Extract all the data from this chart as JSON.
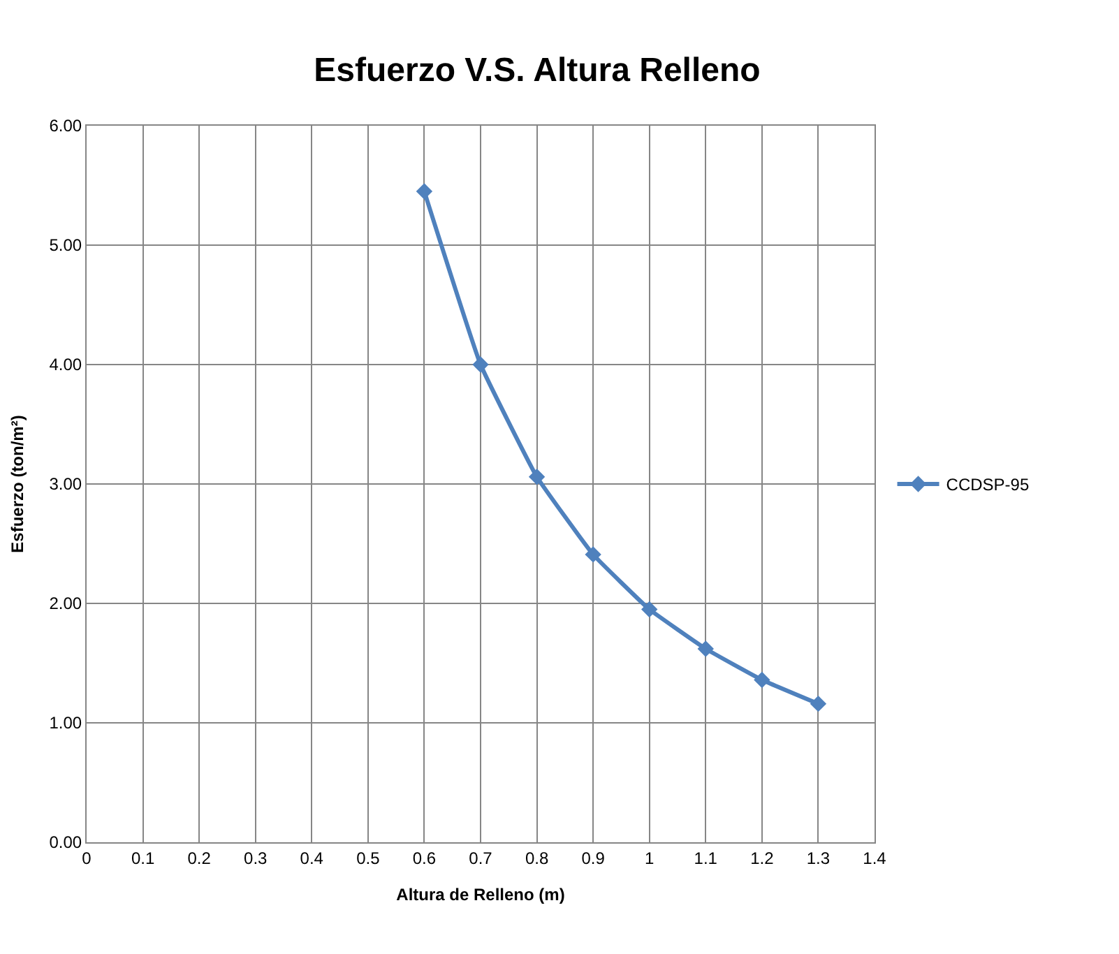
{
  "chart_data": {
    "type": "line",
    "title": "Esfuerzo V.S. Altura Relleno",
    "xlabel": "Altura de Relleno (m)",
    "ylabel": "Esfuerzo (ton/m²)",
    "x": [
      0.6,
      0.7,
      0.8,
      0.9,
      1.0,
      1.1,
      1.2,
      1.3
    ],
    "series": [
      {
        "name": "CCDSP-95",
        "color": "#4f81bd",
        "values": [
          5.45,
          4.0,
          3.06,
          2.41,
          1.95,
          1.62,
          1.36,
          1.16
        ]
      }
    ],
    "xlim": [
      0,
      1.4
    ],
    "xticks": [
      0,
      0.1,
      0.2,
      0.3,
      0.4,
      0.5,
      0.6,
      0.7,
      0.8,
      0.9,
      1,
      1.1,
      1.2,
      1.3,
      1.4
    ],
    "ylim": [
      0,
      6
    ],
    "yticks": [
      {
        "value": 0,
        "label": "0.00"
      },
      {
        "value": 1,
        "label": "1.00"
      },
      {
        "value": 2,
        "label": "2.00"
      },
      {
        "value": 3,
        "label": "3.00"
      },
      {
        "value": 4,
        "label": "4.00"
      },
      {
        "value": 5,
        "label": "5.00"
      },
      {
        "value": 6,
        "label": "6.00"
      }
    ],
    "grid": true,
    "legend": "right",
    "marker": "diamond",
    "line_style": "solid"
  }
}
